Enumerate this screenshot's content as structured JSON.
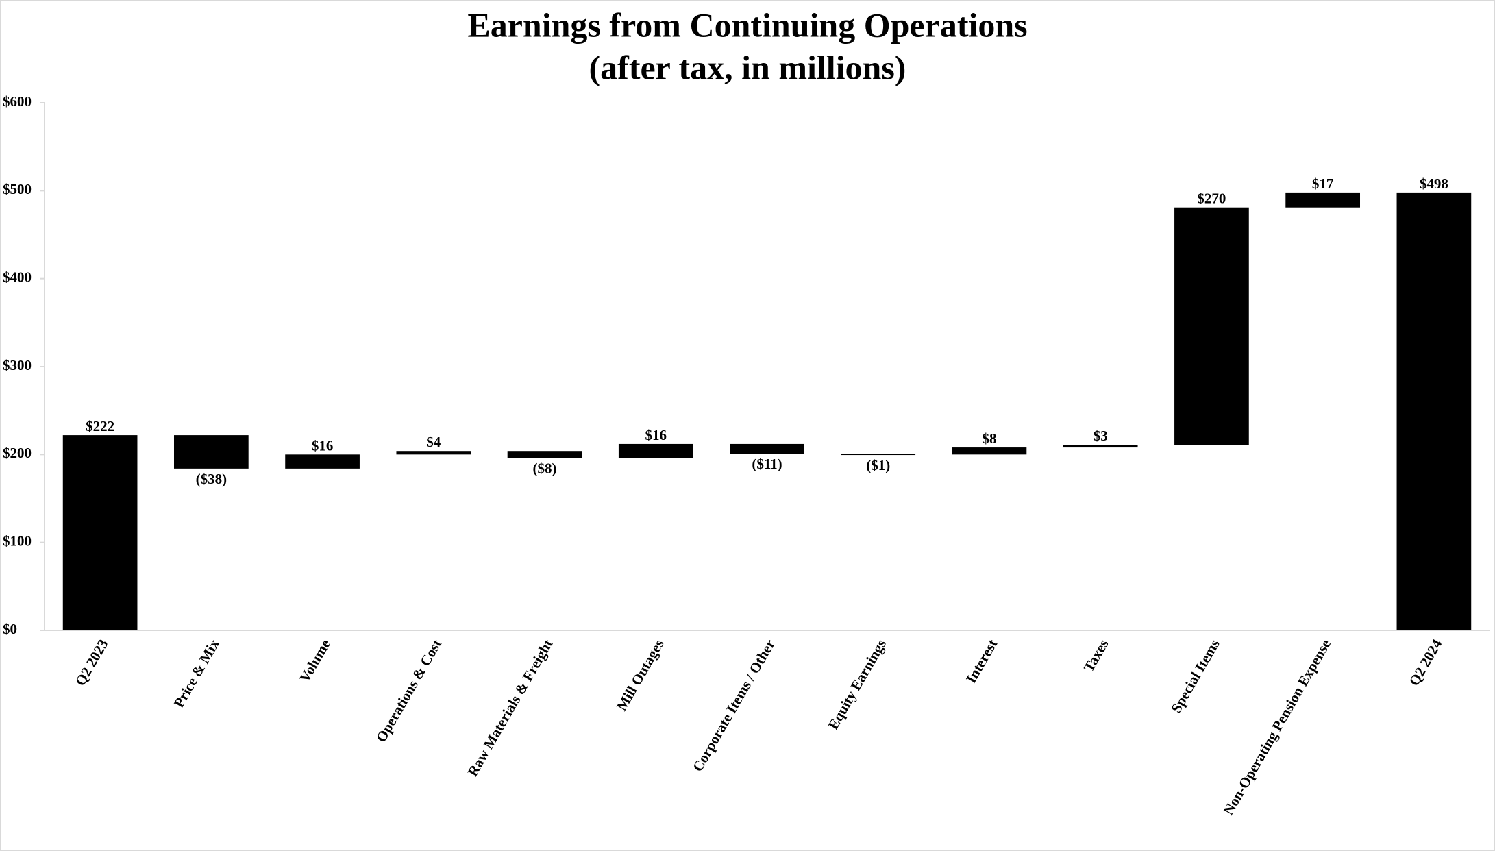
{
  "chart_data": {
    "type": "waterfall",
    "title": "Earnings from Continuing Operations",
    "subtitle": "(after tax, in millions)",
    "categories": [
      "Q2 2023",
      "Price & Mix",
      "Volume",
      "Operations & Cost",
      "Raw Materials & Freight",
      "Mill Outages",
      "Corporate Items / Other",
      "Equity Earnings",
      "Interest",
      "Taxes",
      "Special Items",
      "Non-Operating Pension Expense",
      "Q2 2024"
    ],
    "values": [
      222,
      -38,
      16,
      4,
      -8,
      16,
      -11,
      -1,
      8,
      3,
      270,
      17,
      498
    ],
    "value_labels": [
      "$222",
      "($38)",
      "$16",
      "$4",
      "($8)",
      "$16",
      "($11)",
      "($1)",
      "$8",
      "$3",
      "$270",
      "$17",
      "$498"
    ],
    "color": "#000000",
    "ylim": [
      0,
      600
    ],
    "yticks": [
      {
        "value": 0,
        "label": "$0"
      },
      {
        "value": 100,
        "label": "$100"
      },
      {
        "value": 200,
        "label": "$200"
      },
      {
        "value": 300,
        "label": "$300"
      },
      {
        "value": 400,
        "label": "$400"
      },
      {
        "value": 500,
        "label": "$500"
      },
      {
        "value": 600,
        "label": "$600"
      }
    ]
  }
}
